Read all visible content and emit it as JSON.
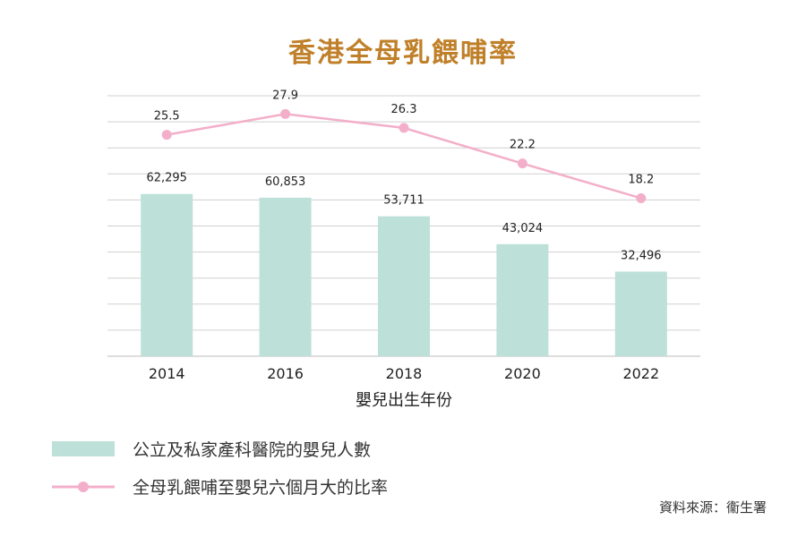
{
  "title": "香港全母乳餵哺率",
  "colors": {
    "title": "#c0802a",
    "bar": "#bde0d8",
    "line": "#f3afc9",
    "grid": "#d0d0d0"
  },
  "chart_data": {
    "type": "bar+line",
    "title": "香港全母乳餵哺率",
    "xlabel": "嬰兒出生年份",
    "categories": [
      "2014",
      "2016",
      "2018",
      "2020",
      "2022"
    ],
    "series": [
      {
        "name": "公立及私家產科醫院的嬰兒人數",
        "type": "bar",
        "values": [
          62295,
          60853,
          53711,
          43024,
          32496
        ],
        "labels": [
          "62,295",
          "60,853",
          "53,711",
          "43,024",
          "32,496"
        ],
        "ylim": [
          0,
          100000
        ]
      },
      {
        "name": "全母乳餵哺至嬰兒六個月大的比率",
        "type": "line",
        "values": [
          25.5,
          27.9,
          26.3,
          22.2,
          18.2
        ],
        "labels": [
          "25.5",
          "27.9",
          "26.3",
          "22.2",
          "18.2"
        ],
        "ylim": [
          0,
          30
        ]
      }
    ],
    "grid": true,
    "gridlines": 10,
    "legend": "bottom-left"
  },
  "source": "資料來源：衞生署"
}
